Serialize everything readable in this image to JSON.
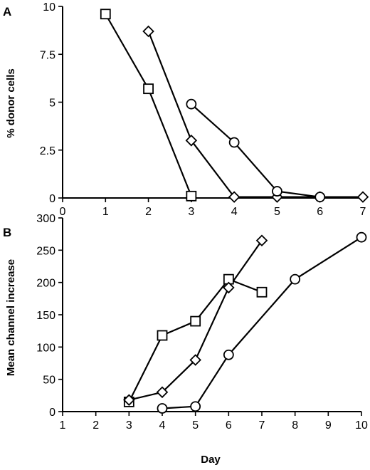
{
  "chart_data": [
    {
      "type": "line",
      "panel_label": "A",
      "title": "",
      "xlabel": "",
      "ylabel": "% donor cells",
      "xlim": [
        0,
        7
      ],
      "ylim": [
        0,
        10
      ],
      "x_ticks": [
        0,
        1,
        2,
        3,
        4,
        5,
        6,
        7
      ],
      "y_ticks": [
        0,
        2.5,
        5,
        7.5,
        10
      ],
      "y_tick_labels": [
        "0",
        "2.5",
        "5",
        "7.5",
        "10"
      ],
      "grid": false,
      "legend": "none",
      "series": [
        {
          "marker": "square",
          "x": [
            1,
            2,
            3
          ],
          "values": [
            9.6,
            5.7,
            0.1
          ]
        },
        {
          "marker": "diamond",
          "x": [
            2,
            3,
            4,
            5,
            6,
            7
          ],
          "values": [
            8.7,
            3.0,
            0.05,
            0.05,
            0.05,
            0.05
          ]
        },
        {
          "marker": "circle",
          "x": [
            3,
            4,
            5,
            6
          ],
          "values": [
            4.9,
            2.9,
            0.35,
            0.05
          ]
        }
      ]
    },
    {
      "type": "line",
      "panel_label": "B",
      "title": "",
      "xlabel": "Day",
      "ylabel": "Mean channel increase",
      "xlim": [
        1,
        10
      ],
      "ylim": [
        0,
        300
      ],
      "x_ticks": [
        1,
        2,
        3,
        4,
        5,
        6,
        7,
        8,
        9,
        10
      ],
      "y_ticks": [
        0,
        50,
        100,
        150,
        200,
        250,
        300
      ],
      "y_tick_labels": [
        "0",
        "50",
        "100",
        "150",
        "200",
        "250",
        "300"
      ],
      "grid": false,
      "legend": "none",
      "series": [
        {
          "marker": "square",
          "x": [
            3,
            4,
            5,
            6,
            7
          ],
          "values": [
            15,
            118,
            140,
            205,
            185
          ]
        },
        {
          "marker": "diamond",
          "x": [
            3,
            4,
            5,
            6,
            7
          ],
          "values": [
            18,
            30,
            80,
            192,
            265
          ]
        },
        {
          "marker": "circle",
          "x": [
            4,
            5,
            6,
            8,
            10
          ],
          "values": [
            5,
            8,
            88,
            205,
            270
          ]
        }
      ]
    }
  ]
}
